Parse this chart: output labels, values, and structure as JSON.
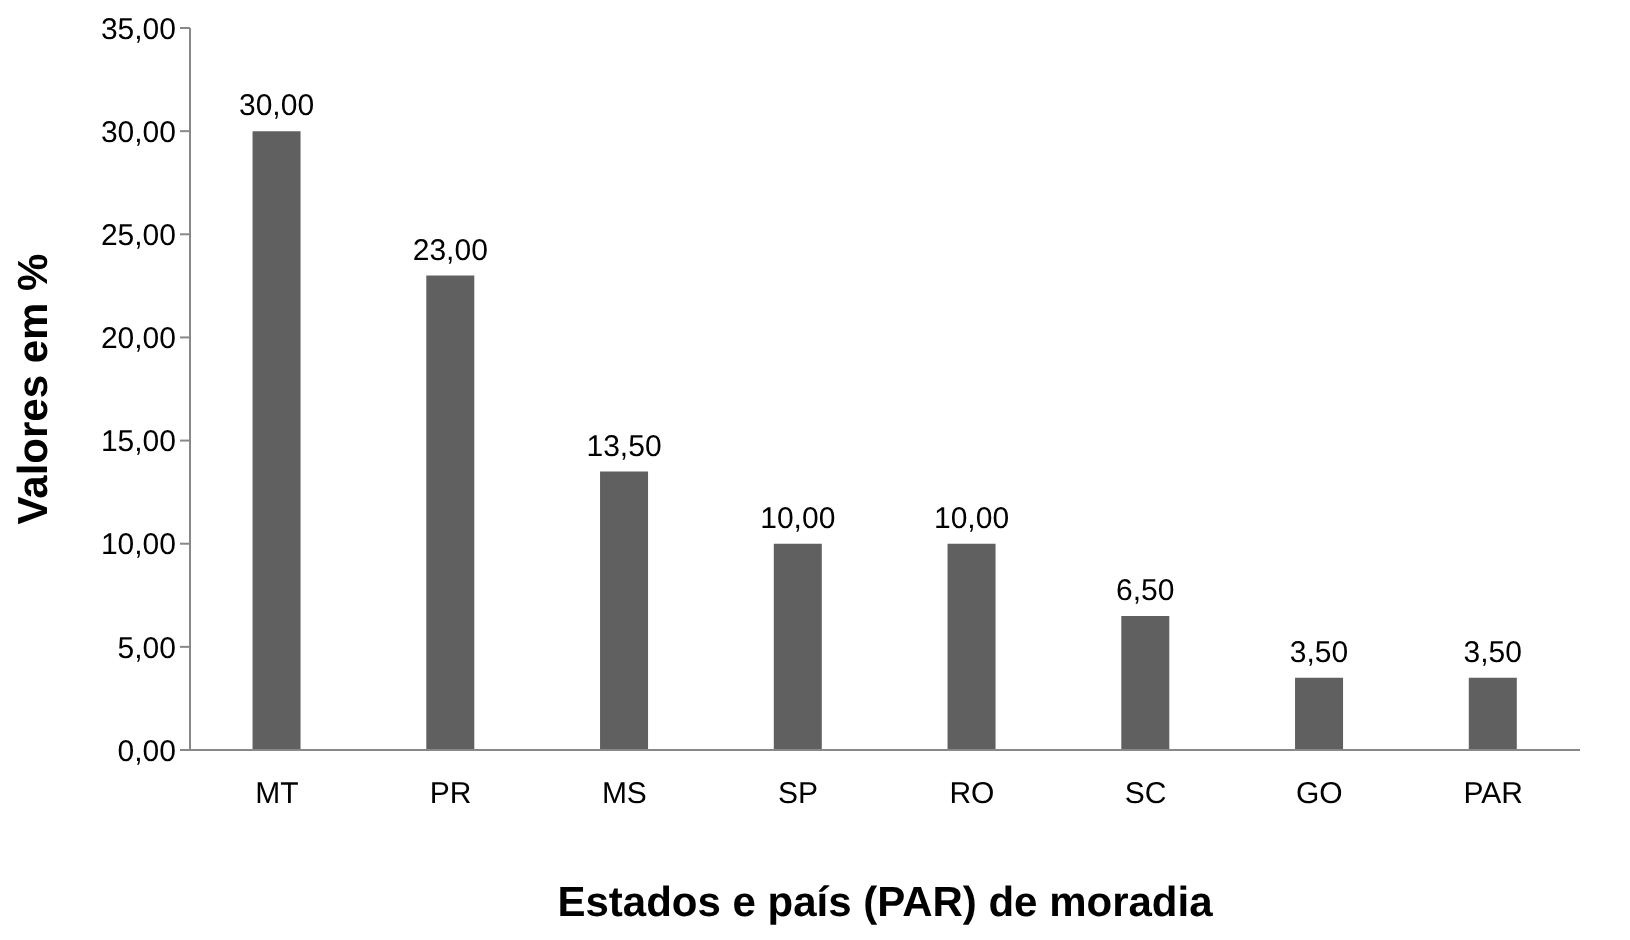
{
  "chart_data": {
    "type": "bar",
    "xlabel": "Estados e país (PAR) de moradia",
    "ylabel": "Valores em %",
    "categories": [
      "MT",
      "PR",
      "MS",
      "SP",
      "RO",
      "SC",
      "GO",
      "PAR"
    ],
    "values": [
      30,
      23,
      13.5,
      10,
      10,
      6.5,
      3.5,
      3.5
    ],
    "value_labels": [
      "30,00",
      "23,00",
      "13,50",
      "10,00",
      "10,00",
      "6,50",
      "3,50",
      "3,50"
    ],
    "color": "#606060",
    "ylim": [
      0,
      35
    ],
    "yticks": [
      {
        "value": 0,
        "label": "0,00"
      },
      {
        "value": 5,
        "label": "5,00"
      },
      {
        "value": 10,
        "label": "10,00"
      },
      {
        "value": 15,
        "label": "15,00"
      },
      {
        "value": 20,
        "label": "20,00"
      },
      {
        "value": 25,
        "label": "25,00"
      },
      {
        "value": 30,
        "label": "30,00"
      },
      {
        "value": 35,
        "label": "35,00"
      }
    ],
    "grid": false,
    "legend": false
  }
}
